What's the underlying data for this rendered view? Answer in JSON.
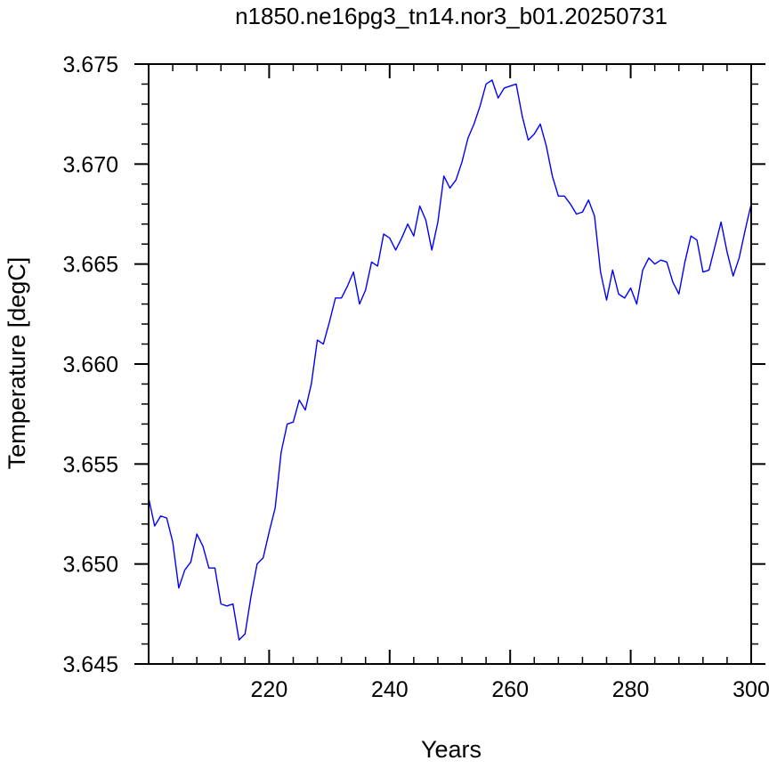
{
  "chart_data": {
    "type": "line",
    "title": "n1850.ne16pg3_tn14.nor3_b01.20250731",
    "xlabel": "Years",
    "ylabel": "Temperature [degC]",
    "xlim": [
      200,
      300
    ],
    "ylim": [
      3.645,
      3.675
    ],
    "xticks": [
      220,
      240,
      260,
      280,
      300
    ],
    "xtick_labels": [
      "220",
      "240",
      "260",
      "280",
      "300"
    ],
    "yticks": [
      3.645,
      3.65,
      3.655,
      3.66,
      3.665,
      3.67,
      3.675
    ],
    "ytick_labels": [
      "3.645",
      "3.650",
      "3.655",
      "3.660",
      "3.665",
      "3.670",
      "3.675"
    ],
    "grid": false,
    "line_color": "#0000ff",
    "series": [
      {
        "x": [
          200,
          201,
          202,
          203,
          204,
          205,
          206,
          207,
          208,
          209,
          210,
          211,
          212,
          213,
          214,
          215,
          216,
          217,
          218,
          219,
          220,
          221,
          222,
          223,
          224,
          225,
          226,
          227,
          228,
          229,
          230,
          231,
          232,
          233,
          234,
          235,
          236,
          237,
          238,
          239,
          240,
          241,
          242,
          243,
          244,
          245,
          246,
          247,
          248,
          249,
          250,
          251,
          252,
          253,
          254,
          255,
          256,
          257,
          258,
          259,
          260,
          261,
          262,
          263,
          264,
          265,
          266,
          267,
          268,
          269,
          270,
          271,
          272,
          273,
          274,
          275,
          276,
          277,
          278,
          279,
          280,
          281,
          282,
          283,
          284,
          285,
          286,
          287,
          288,
          289,
          290,
          291,
          292,
          293,
          294,
          295,
          296,
          297,
          298,
          299,
          300
        ],
        "y": [
          3.6533,
          3.6519,
          3.6524,
          3.6523,
          3.6511,
          3.6488,
          3.6497,
          3.6501,
          3.6515,
          3.6509,
          3.6498,
          3.6498,
          3.648,
          3.6479,
          3.648,
          3.6462,
          3.6465,
          3.6484,
          3.65,
          3.6503,
          3.6516,
          3.6528,
          3.6556,
          3.657,
          3.6571,
          3.6582,
          3.6577,
          3.659,
          3.6612,
          3.661,
          3.6621,
          3.6633,
          3.6633,
          3.6639,
          3.6646,
          3.663,
          3.6637,
          3.6651,
          3.6649,
          3.6665,
          3.6663,
          3.6657,
          3.6663,
          3.667,
          3.6664,
          3.6679,
          3.6672,
          3.6657,
          3.6671,
          3.6694,
          3.6688,
          3.6692,
          3.6701,
          3.6713,
          3.672,
          3.6729,
          3.674,
          3.6742,
          3.6733,
          3.6738,
          3.6739,
          3.674,
          3.6724,
          3.6712,
          3.6715,
          3.672,
          3.6709,
          3.6694,
          3.6684,
          3.6684,
          3.668,
          3.6675,
          3.6676,
          3.6682,
          3.6674,
          3.6646,
          3.6632,
          3.6647,
          3.6635,
          3.6633,
          3.6638,
          3.663,
          3.6647,
          3.6653,
          3.665,
          3.6652,
          3.6651,
          3.6641,
          3.6635,
          3.6651,
          3.6664,
          3.6662,
          3.6646,
          3.6647,
          3.6659,
          3.6671,
          3.6656,
          3.6644,
          3.6653,
          3.6667,
          3.668
        ]
      }
    ]
  }
}
